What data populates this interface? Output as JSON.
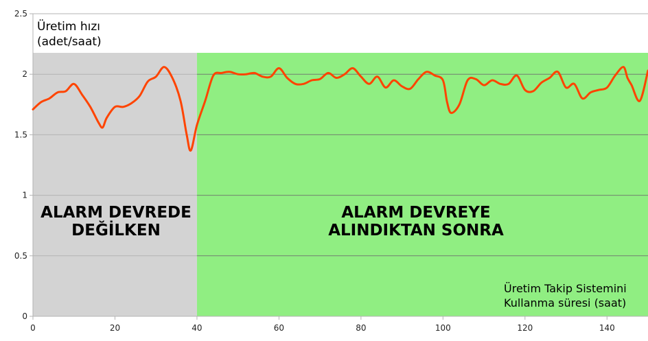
{
  "chart_data": {
    "type": "line",
    "ylabel": [
      "Üretim hızı",
      "(adet/saat)"
    ],
    "xlabel": [
      "Üretim Takip Sistemini",
      "Kullanma süresi (saat)"
    ],
    "xlim": [
      0,
      150
    ],
    "ylim": [
      0,
      2.5
    ],
    "x_ticks": [
      0,
      20,
      40,
      60,
      80,
      100,
      120,
      140
    ],
    "y_ticks": [
      0,
      0.5,
      1,
      1.5,
      2,
      2.5
    ],
    "y_tick_labels": [
      "0",
      "0.5",
      "1",
      "1.5",
      "2",
      "2.5"
    ],
    "grid": true,
    "line_color": "#ff4400",
    "regions": [
      {
        "x_start": 0,
        "x_end": 40,
        "color": "#d3d3d3",
        "label": [
          "ALARM DEVREDE",
          "DEĞİLKEN"
        ]
      },
      {
        "x_start": 40,
        "x_end": 150,
        "color": "#90ee82",
        "label": [
          "ALARM DEVREYE",
          "ALINDIKTAN SONRA"
        ]
      }
    ],
    "series": [
      {
        "x": [
          0,
          2,
          4,
          6,
          8,
          10,
          12,
          14,
          16,
          17,
          18,
          20,
          22,
          24,
          26,
          28,
          30,
          32,
          34,
          36,
          37.5,
          38.5,
          40,
          42,
          44,
          46,
          48,
          50,
          52,
          54,
          56,
          58,
          60,
          62,
          64,
          66,
          68,
          70,
          72,
          74,
          76,
          78,
          80,
          82,
          84,
          86,
          88,
          90,
          92,
          94,
          96,
          98,
          100,
          101,
          102,
          104,
          106,
          108,
          110,
          112,
          114,
          116,
          118,
          120,
          122,
          124,
          126,
          128,
          130,
          132,
          134,
          136,
          138,
          140,
          142,
          144,
          145,
          146,
          148,
          150
        ],
        "y": [
          1.71,
          1.77,
          1.8,
          1.85,
          1.86,
          1.92,
          1.83,
          1.73,
          1.6,
          1.56,
          1.64,
          1.73,
          1.73,
          1.76,
          1.82,
          1.94,
          1.98,
          2.06,
          1.97,
          1.78,
          1.5,
          1.37,
          1.58,
          1.78,
          1.99,
          2.01,
          2.02,
          2.0,
          2.0,
          2.01,
          1.98,
          1.98,
          2.05,
          1.97,
          1.92,
          1.92,
          1.95,
          1.96,
          2.01,
          1.97,
          2.0,
          2.05,
          1.98,
          1.92,
          1.98,
          1.89,
          1.95,
          1.9,
          1.88,
          1.96,
          2.02,
          1.99,
          1.95,
          1.77,
          1.68,
          1.75,
          1.95,
          1.96,
          1.91,
          1.95,
          1.92,
          1.92,
          1.99,
          1.87,
          1.86,
          1.93,
          1.97,
          2.02,
          1.89,
          1.92,
          1.8,
          1.85,
          1.87,
          1.89,
          1.99,
          2.06,
          1.97,
          1.91,
          1.78,
          2.03
        ]
      }
    ]
  }
}
